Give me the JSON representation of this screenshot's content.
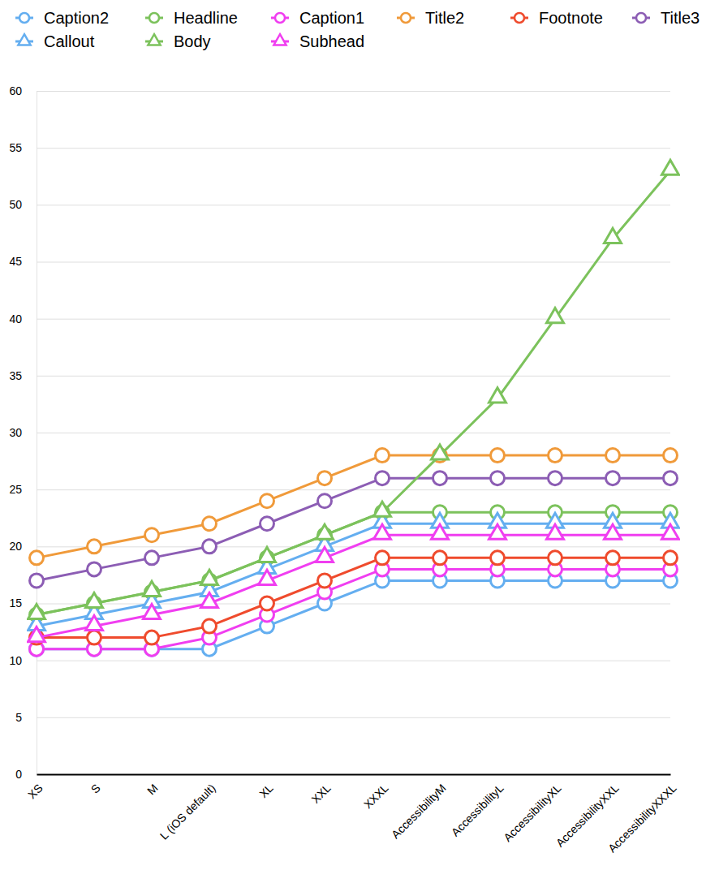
{
  "chart_data": {
    "type": "line",
    "categories": [
      "XS",
      "S",
      "M",
      "L (iOS default)",
      "XL",
      "XXL",
      "XXXL",
      "AccessibilityM",
      "AccessibilityL",
      "AccessibilityXL",
      "AccessibilityXXL",
      "AccessibilityXXXL"
    ],
    "series": [
      {
        "name": "Caption2",
        "color": "#64aef0",
        "marker": "circle",
        "line_style": "solid",
        "values": [
          11,
          11,
          11,
          11,
          13,
          15,
          17,
          17,
          17,
          17,
          17,
          17
        ]
      },
      {
        "name": "Headline",
        "color": "#7cc25c",
        "marker": "circle",
        "line_style": "solid",
        "values": [
          14,
          15,
          16,
          17,
          19,
          21,
          23,
          23,
          23,
          23,
          23,
          23
        ]
      },
      {
        "name": "Caption1",
        "color": "#f03ef0",
        "marker": "circle",
        "line_style": "solid",
        "values": [
          11,
          11,
          11,
          12,
          14,
          16,
          18,
          18,
          18,
          18,
          18,
          18
        ]
      },
      {
        "name": "Title2",
        "color": "#f09a3a",
        "marker": "circle",
        "line_style": "solid",
        "values": [
          19,
          20,
          21,
          22,
          24,
          26,
          28,
          28,
          28,
          28,
          28,
          28
        ]
      },
      {
        "name": "Footnote",
        "color": "#ef4b2d",
        "marker": "circle",
        "line_style": "solid",
        "values": [
          12,
          12,
          12,
          13,
          15,
          17,
          19,
          19,
          19,
          19,
          19,
          19
        ]
      },
      {
        "name": "Title3",
        "color": "#8c5db4",
        "marker": "circle",
        "line_style": "solid",
        "values": [
          17,
          18,
          19,
          20,
          22,
          24,
          26,
          26,
          26,
          26,
          26,
          26
        ]
      },
      {
        "name": "Callout",
        "color": "#64aef0",
        "marker": "triangle",
        "line_style": "solid",
        "values": [
          13,
          14,
          15,
          16,
          18,
          20,
          22,
          22,
          22,
          22,
          22,
          22
        ]
      },
      {
        "name": "Body",
        "color": "#7cc25c",
        "marker": "triangle",
        "line_style": "solid",
        "values": [
          14,
          15,
          16,
          17,
          19,
          21,
          23,
          28,
          33,
          40,
          47,
          53
        ]
      },
      {
        "name": "Subhead",
        "color": "#f03ef0",
        "marker": "triangle",
        "line_style": "solid",
        "values": [
          12,
          13,
          14,
          15,
          17,
          19,
          21,
          21,
          21,
          21,
          21,
          21
        ]
      }
    ],
    "ylim": [
      0,
      60
    ],
    "yticks": [
      0,
      5,
      10,
      15,
      20,
      25,
      30,
      35,
      40,
      45,
      50,
      55,
      60
    ],
    "grid": true,
    "legend": "top"
  }
}
